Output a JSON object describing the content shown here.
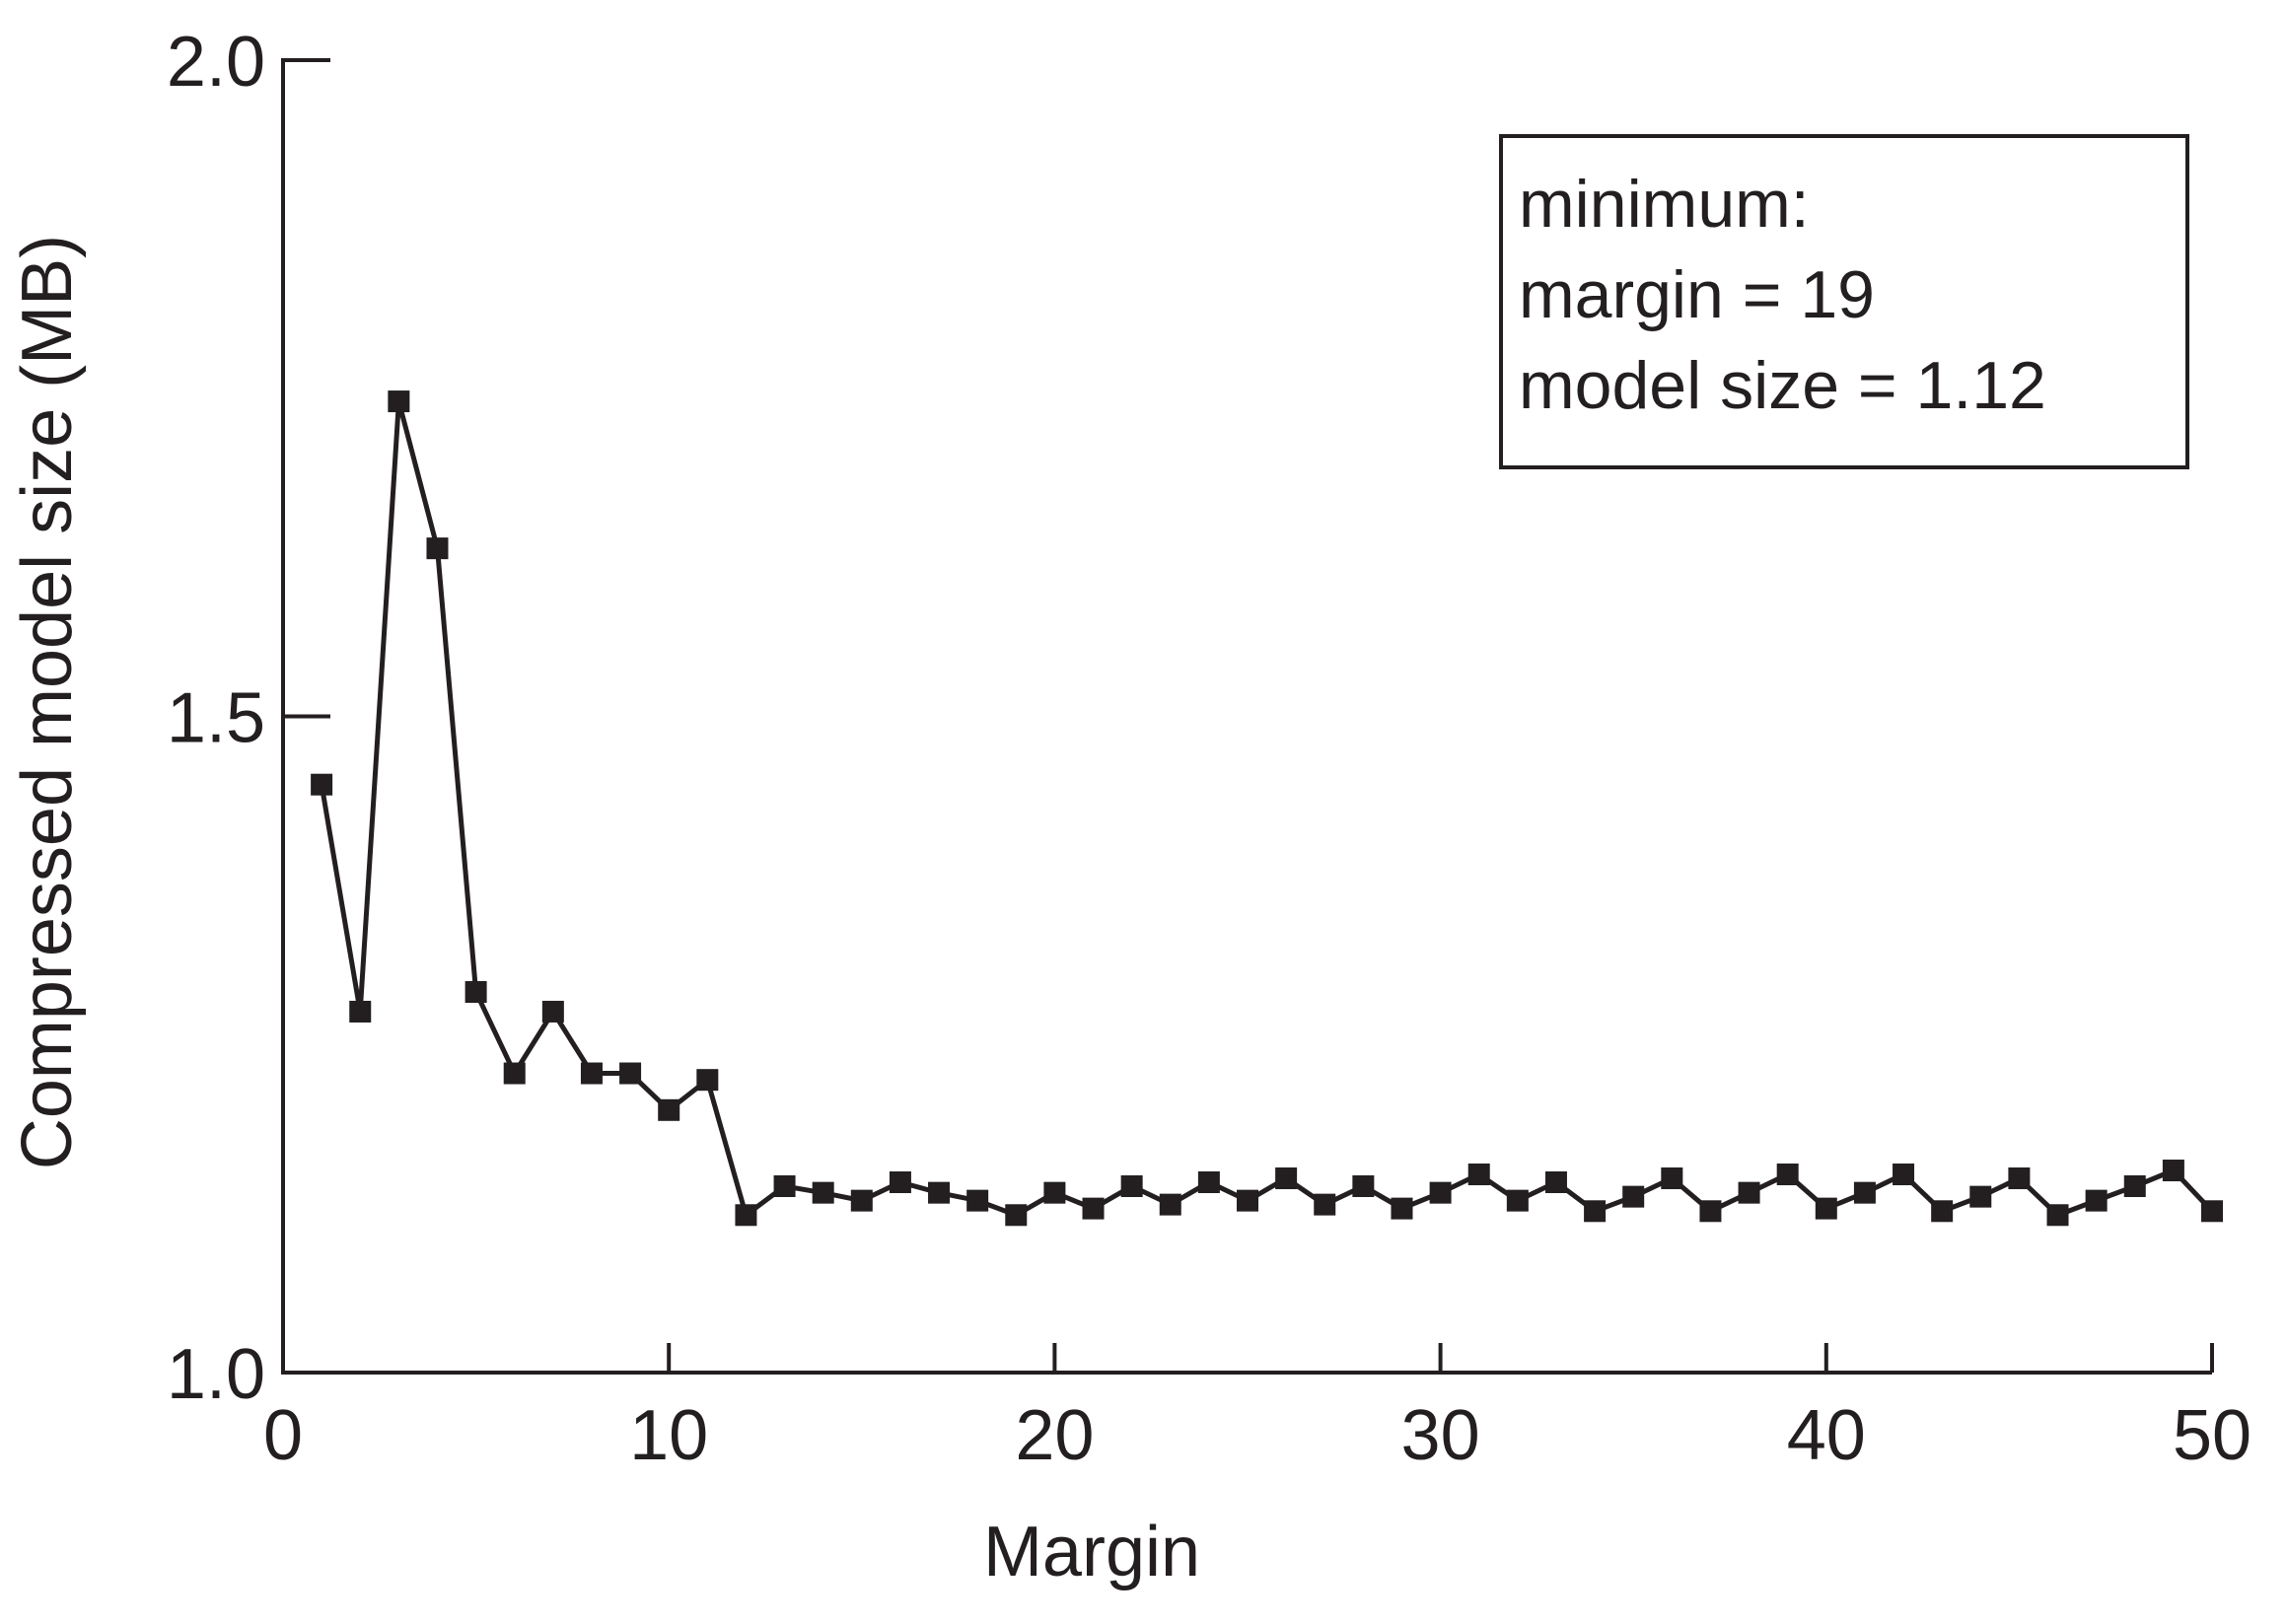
{
  "chart_data": {
    "type": "line",
    "title": "",
    "xlabel": "Margin",
    "ylabel": "Compressed model size (MB)",
    "xlim": [
      0,
      50
    ],
    "ylim": [
      1.0,
      2.0
    ],
    "xticks": [
      "0",
      "10",
      "20",
      "30",
      "40",
      "50"
    ],
    "yticks": [
      "1.0",
      "1.5",
      "2.0"
    ],
    "grid": false,
    "line_color": "#231f20",
    "marker": "square",
    "x": [
      1,
      2,
      3,
      4,
      5,
      6,
      7,
      8,
      9,
      10,
      11,
      12,
      13,
      14,
      15,
      16,
      17,
      18,
      19,
      20,
      21,
      22,
      23,
      24,
      25,
      26,
      27,
      28,
      29,
      30,
      31,
      32,
      33,
      34,
      35,
      36,
      37,
      38,
      39,
      40,
      41,
      42,
      43,
      44,
      45,
      46,
      47,
      48,
      49,
      50
    ],
    "values": [
      1.448,
      1.275,
      1.74,
      1.628,
      1.29,
      1.228,
      1.275,
      1.228,
      1.228,
      1.2,
      1.223,
      1.12,
      1.142,
      1.137,
      1.131,
      1.145,
      1.137,
      1.131,
      1.12,
      1.137,
      1.125,
      1.142,
      1.128,
      1.145,
      1.131,
      1.148,
      1.128,
      1.142,
      1.125,
      1.137,
      1.151,
      1.131,
      1.145,
      1.123,
      1.134,
      1.148,
      1.123,
      1.137,
      1.151,
      1.125,
      1.137,
      1.151,
      1.123,
      1.134,
      1.148,
      1.12,
      1.131,
      1.142,
      1.154,
      1.123
    ],
    "annotation": {
      "lines": [
        "minimum:",
        "margin = 19",
        "model size = 1.12"
      ],
      "placement": "top-right"
    }
  }
}
